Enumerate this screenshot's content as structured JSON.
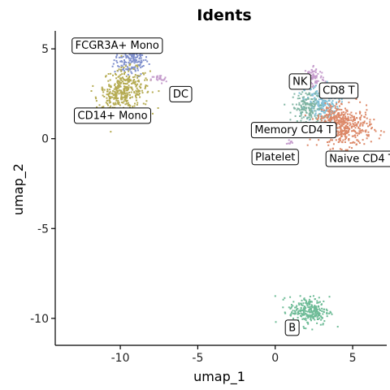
{
  "chart_data": {
    "type": "scatter",
    "title": "Idents",
    "xlabel": "umap_1",
    "ylabel": "umap_2",
    "xlim": [
      -14.2,
      7.2
    ],
    "ylim": [
      -11.5,
      6.0
    ],
    "x_ticks": [
      -10,
      -5,
      0,
      5
    ],
    "y_ticks": [
      -10,
      -5,
      0,
      5
    ],
    "grid": false,
    "legend": "none",
    "clusters": [
      {
        "label": "FCGR3A+ Mono",
        "color": "#7f8fcc",
        "blobs": [
          {
            "cx": -9.3,
            "cy": 4.4,
            "sx": 0.55,
            "sy": 0.45,
            "n": 180
          }
        ],
        "label_pos": [
          -10.2,
          5.2
        ]
      },
      {
        "label": "CD14+ Mono",
        "color": "#b5ab52",
        "blobs": [
          {
            "cx": -9.6,
            "cy": 2.8,
            "sx": 0.75,
            "sy": 0.55,
            "n": 260
          },
          {
            "cx": -10.3,
            "cy": 2.2,
            "sx": 0.55,
            "sy": 0.45,
            "n": 140
          }
        ],
        "label_pos": [
          -10.5,
          1.3
        ]
      },
      {
        "label": "DC",
        "color": "#c59ccc",
        "blobs": [
          {
            "cx": -7.5,
            "cy": 3.3,
            "sx": 0.25,
            "sy": 0.12,
            "n": 25
          }
        ],
        "label_pos": [
          -6.1,
          2.5
        ]
      },
      {
        "label": "NK",
        "color": "#c59ccc",
        "blobs": [
          {
            "cx": 2.5,
            "cy": 3.4,
            "sx": 0.35,
            "sy": 0.35,
            "n": 80
          }
        ],
        "label_pos": [
          1.6,
          3.2
        ]
      },
      {
        "label": "CD8 T",
        "color": "#7fbfd6",
        "blobs": [
          {
            "cx": 3.0,
            "cy": 2.0,
            "sx": 0.55,
            "sy": 0.5,
            "n": 200
          }
        ],
        "label_pos": [
          4.1,
          2.7
        ]
      },
      {
        "label": "Memory CD4 T",
        "color": "#80b5a3",
        "blobs": [
          {
            "cx": 2.1,
            "cy": 1.7,
            "sx": 0.5,
            "sy": 0.5,
            "n": 170
          }
        ],
        "label_pos": [
          1.2,
          0.5
        ]
      },
      {
        "label": "Naive CD4 T",
        "color": "#dc8868",
        "blobs": [
          {
            "cx": 4.5,
            "cy": 0.6,
            "sx": 0.85,
            "sy": 0.55,
            "n": 380
          },
          {
            "cx": 3.6,
            "cy": 1.1,
            "sx": 0.5,
            "sy": 0.4,
            "n": 110
          }
        ],
        "label_pos": [
          5.6,
          -1.1
        ]
      },
      {
        "label": "Platelet",
        "color": "#c59ccc",
        "blobs": [
          {
            "cx": 0.9,
            "cy": -0.2,
            "sx": 0.08,
            "sy": 0.08,
            "n": 8
          }
        ],
        "label_pos": [
          0.0,
          -1.0
        ]
      },
      {
        "label": "B",
        "color": "#6dbb96",
        "blobs": [
          {
            "cx": 2.2,
            "cy": -9.6,
            "sx": 0.65,
            "sy": 0.4,
            "n": 260
          }
        ],
        "label_pos": [
          1.1,
          -10.5
        ]
      }
    ]
  }
}
